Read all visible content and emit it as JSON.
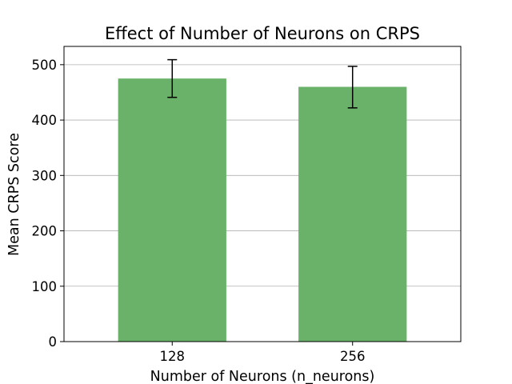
{
  "chart_data": {
    "type": "bar",
    "title": "Effect of Number of Neurons on CRPS",
    "xlabel": "Number of Neurons (n_neurons)",
    "ylabel": "Mean CRPS Score",
    "categories": [
      "128",
      "256"
    ],
    "values": [
      475,
      460
    ],
    "error": [
      {
        "low": 441,
        "high": 509
      },
      {
        "low": 422,
        "high": 497
      }
    ],
    "ylim": [
      0,
      533
    ],
    "yticks": [
      0,
      100,
      200,
      300,
      400,
      500
    ],
    "grid": "y",
    "colors": {
      "bar": "#6ab26a",
      "error": "#000000",
      "grid": "#b0b0b0",
      "axis": "#000000"
    }
  }
}
